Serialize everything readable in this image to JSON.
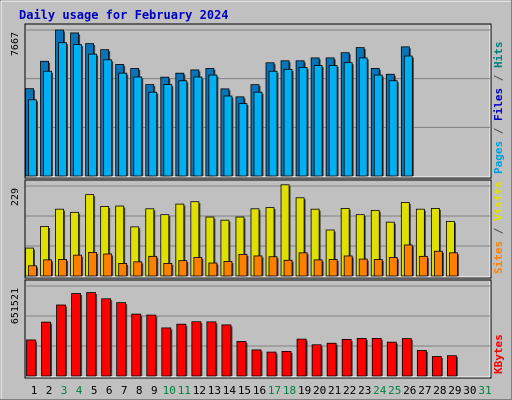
{
  "chart_data": {
    "type": "bar",
    "title": "Daily usage for February 2024",
    "categories": [
      "1",
      "2",
      "3",
      "4",
      "5",
      "6",
      "7",
      "8",
      "9",
      "10",
      "11",
      "12",
      "13",
      "14",
      "15",
      "16",
      "17",
      "18",
      "19",
      "20",
      "21",
      "22",
      "23",
      "24",
      "25",
      "26",
      "27",
      "28",
      "29",
      "30",
      "31"
    ],
    "weekend_days": [
      "3",
      "4",
      "10",
      "11",
      "17",
      "18",
      "24",
      "25",
      "31"
    ],
    "panels": [
      {
        "id": "top",
        "ytick_label": "7667",
        "ymax": 7667,
        "side_labels": [
          {
            "text": "Pages",
            "color": "#00a0e0"
          },
          {
            "text": " / ",
            "color": "#505050"
          },
          {
            "text": "Files",
            "color": "#0000c0"
          },
          {
            "text": " / ",
            "color": "#505050"
          },
          {
            "text": "Hits",
            "color": "#008080"
          }
        ],
        "series": [
          {
            "color": "#0a74b8",
            "values": [
              4586,
              6023,
              7668,
              7514,
              6951,
              6633,
              5857,
              5648,
              4798,
              5190,
              5399,
              5571,
              5648,
              4576,
              4157,
              4798,
              5946,
              6051,
              6051,
              6202,
              6202,
              6475,
              6742,
              5648,
              5343,
              6782,
              null,
              null,
              null,
              null,
              null
            ]
          },
          {
            "color": "#00b0f0",
            "values": [
              4000,
              5500,
              7000,
              6900,
              6400,
              6100,
              5400,
              5200,
              4400,
              4800,
              5000,
              5200,
              5300,
              4200,
              3800,
              4400,
              5500,
              5600,
              5700,
              5800,
              5800,
              5950,
              6200,
              5300,
              5000,
              6300,
              null,
              null,
              null,
              null,
              null
            ]
          }
        ]
      },
      {
        "id": "middle",
        "ytick_label": "229",
        "ymax": 229,
        "side_labels": [
          {
            "text": "Sites",
            "color": "#ff8000"
          },
          {
            "text": " / ",
            "color": "#505050"
          },
          {
            "text": "Visits",
            "color": "#e0e000"
          }
        ],
        "series": [
          {
            "color": "#e0e000",
            "values": [
              71,
              126,
              170,
              162,
              207,
              177,
              178,
              125,
              171,
              156,
              183,
              189,
              150,
              142,
              150,
              171,
              174,
              232,
              199,
              170,
              117,
              172,
              156,
              167,
              137,
              187,
              170,
              172,
              139,
              null,
              null
            ]
          },
          {
            "color": "#ff8000",
            "values": [
              26,
              41,
              42,
              53,
              60,
              56,
              32,
              36,
              50,
              32,
              39,
              47,
              33,
              37,
              55,
              51,
              49,
              40,
              59,
              41,
              42,
              51,
              43,
              42,
              47,
              79,
              50,
              63,
              59,
              null,
              null
            ]
          }
        ]
      },
      {
        "id": "bottom",
        "ytick_label": "651521",
        "ymax": 651521,
        "side_labels": [
          {
            "text": "KBytes",
            "color": "#ff0000"
          }
        ],
        "series": [
          {
            "color": "#ff0000",
            "values": [
              261000,
              390000,
              514000,
              597000,
              604000,
              559000,
              531000,
              448000,
              441000,
              348000,
              375000,
              393000,
              392000,
              370000,
              250000,
              189000,
              173000,
              178000,
              267000,
              226000,
              237000,
              265000,
              272000,
              272000,
              245000,
              271000,
              185000,
              141000,
              147000,
              null,
              null
            ]
          }
        ]
      }
    ]
  }
}
